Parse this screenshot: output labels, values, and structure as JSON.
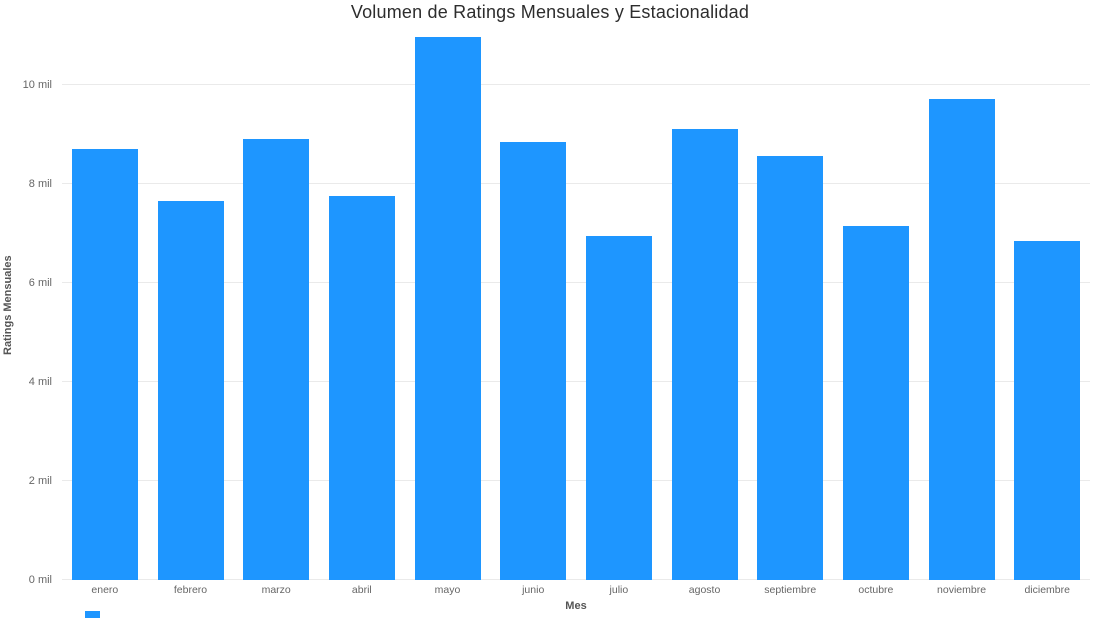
{
  "page": {
    "background": "#ffffff"
  },
  "chart_data": {
    "type": "bar",
    "title": "Volumen de Ratings Mensuales y Estacionalidad",
    "xlabel": "Mes",
    "ylabel": "Ratings Mensuales",
    "categories": [
      "enero",
      "febrero",
      "marzo",
      "abril",
      "mayo",
      "junio",
      "julio",
      "agosto",
      "septiembre",
      "octubre",
      "noviembre",
      "diciembre"
    ],
    "values": [
      8.7,
      7.65,
      8.9,
      7.75,
      10.95,
      8.85,
      6.95,
      9.1,
      8.55,
      7.15,
      9.7,
      6.85
    ],
    "values_unit": "mil (thousands of ratings)",
    "y_ticks": [
      {
        "value": 0,
        "label": "0 mil"
      },
      {
        "value": 2,
        "label": "2 mil"
      },
      {
        "value": 4,
        "label": "4 mil"
      },
      {
        "value": 6,
        "label": "6 mil"
      },
      {
        "value": 8,
        "label": "8 mil"
      },
      {
        "value": 10,
        "label": "10 mil"
      }
    ],
    "ylim": [
      0,
      11.1
    ],
    "grid": true,
    "legend": "none",
    "bar_color": "#1E96FF"
  }
}
